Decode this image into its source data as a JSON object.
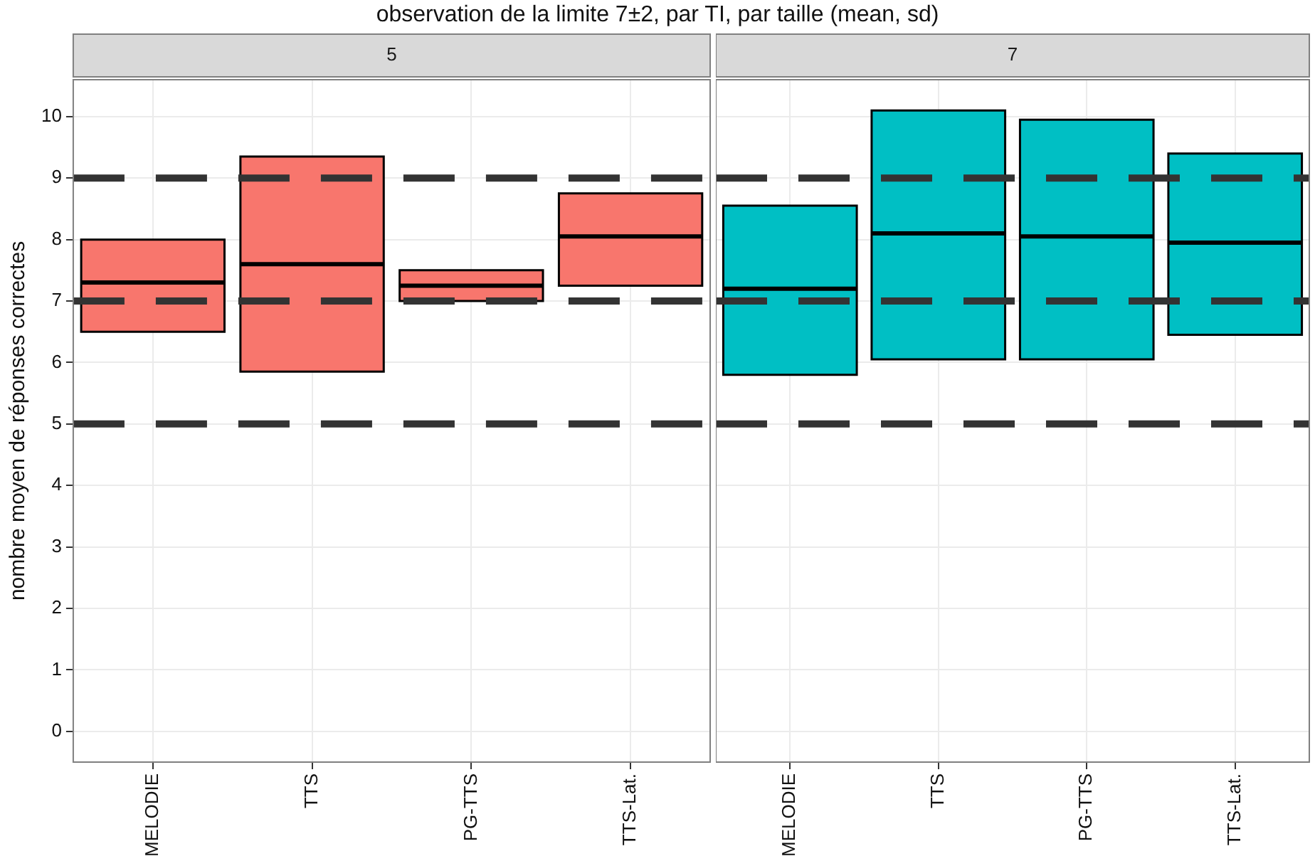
{
  "chart_data": [
    {
      "type": "box",
      "title": "observation de la limite 7±2, par TI, par taille (mean, sd)",
      "subtitle": "5",
      "ylabel": "nombre moyen de réponses correctes",
      "categories": [
        "MELODIE",
        "TTS",
        "PG-TTS",
        "TTS-Lat."
      ],
      "series": [
        {
          "color": "#f8766d",
          "boxes": [
            {
              "low": 6.5,
              "q1": 6.5,
              "median": 7.3,
              "q3": 8.0,
              "high": 8.0
            },
            {
              "low": 5.85,
              "q1": 5.85,
              "median": 7.6,
              "q3": 9.35,
              "high": 9.35
            },
            {
              "low": 7.0,
              "q1": 7.0,
              "median": 7.25,
              "q3": 7.5,
              "high": 7.5
            },
            {
              "low": 7.25,
              "q1": 7.25,
              "median": 8.05,
              "q3": 8.75,
              "high": 8.75
            }
          ]
        }
      ],
      "ylim": [
        -0.5,
        10.6
      ],
      "yticks": [
        0,
        1,
        2,
        3,
        4,
        5,
        6,
        7,
        8,
        9,
        10
      ],
      "grid": true,
      "ref_lines": [
        {
          "axis": "y",
          "value": 9,
          "color": "#333333",
          "line_style": "dashed"
        },
        {
          "axis": "y",
          "value": 5,
          "color": "#333333",
          "line_style": "dashed"
        },
        {
          "axis": "y",
          "value": 7,
          "color": "#333333",
          "line_style": "dashed"
        }
      ]
    },
    {
      "type": "box",
      "subtitle": "7",
      "categories": [
        "MELODIE",
        "TTS",
        "PG-TTS",
        "TTS-Lat."
      ],
      "series": [
        {
          "color": "#00bfc4",
          "boxes": [
            {
              "low": 5.8,
              "q1": 5.8,
              "median": 7.2,
              "q3": 8.55,
              "high": 8.55
            },
            {
              "low": 6.05,
              "q1": 6.05,
              "median": 8.1,
              "q3": 10.1,
              "high": 10.1
            },
            {
              "low": 6.05,
              "q1": 6.05,
              "median": 8.05,
              "q3": 9.95,
              "high": 9.95
            },
            {
              "low": 6.45,
              "q1": 6.45,
              "median": 7.95,
              "q3": 9.4,
              "high": 9.4
            }
          ]
        }
      ],
      "ylim": [
        -0.5,
        10.6
      ],
      "yticks": [
        0,
        1,
        2,
        3,
        4,
        5,
        6,
        7,
        8,
        9,
        10
      ],
      "grid": true,
      "tick_labels": "x",
      "ref_lines": [
        {
          "axis": "y",
          "value": 9,
          "color": "#333333",
          "line_style": "dashed"
        },
        {
          "axis": "y",
          "value": 5,
          "color": "#333333",
          "line_style": "dashed"
        },
        {
          "axis": "y",
          "value": 7,
          "color": "#333333",
          "line_style": "dashed"
        }
      ]
    }
  ]
}
